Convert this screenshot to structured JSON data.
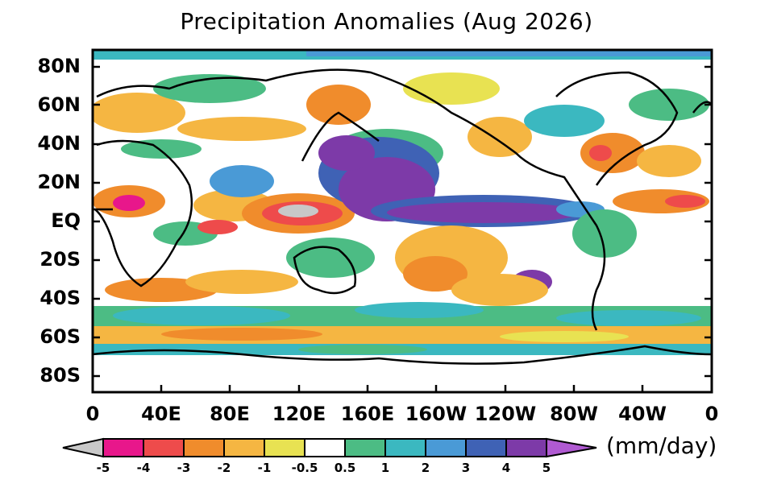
{
  "title": "Precipitation Anomalies (Aug 2026)",
  "units": "(mm/day)",
  "lat_labels": [
    "80N",
    "60N",
    "40N",
    "20N",
    "EQ",
    "20S",
    "40S",
    "60S",
    "80S"
  ],
  "lon_labels": [
    "0",
    "40E",
    "80E",
    "120E",
    "160E",
    "160W",
    "120W",
    "80W",
    "40W",
    "0"
  ],
  "colorbar": {
    "labels": [
      "-5",
      "-4",
      "-3",
      "-2",
      "-1",
      "-0.5",
      "0.5",
      "1",
      "2",
      "3",
      "4",
      "5"
    ],
    "colors": [
      "#c8c8c8",
      "#e8178b",
      "#ee4b4b",
      "#f08c2c",
      "#f5b642",
      "#e8e252",
      "#ffffff",
      "#4cbc84",
      "#3bb8c0",
      "#4a9ad6",
      "#3f62b5",
      "#7d3aa8",
      "#b05ad2"
    ]
  }
}
